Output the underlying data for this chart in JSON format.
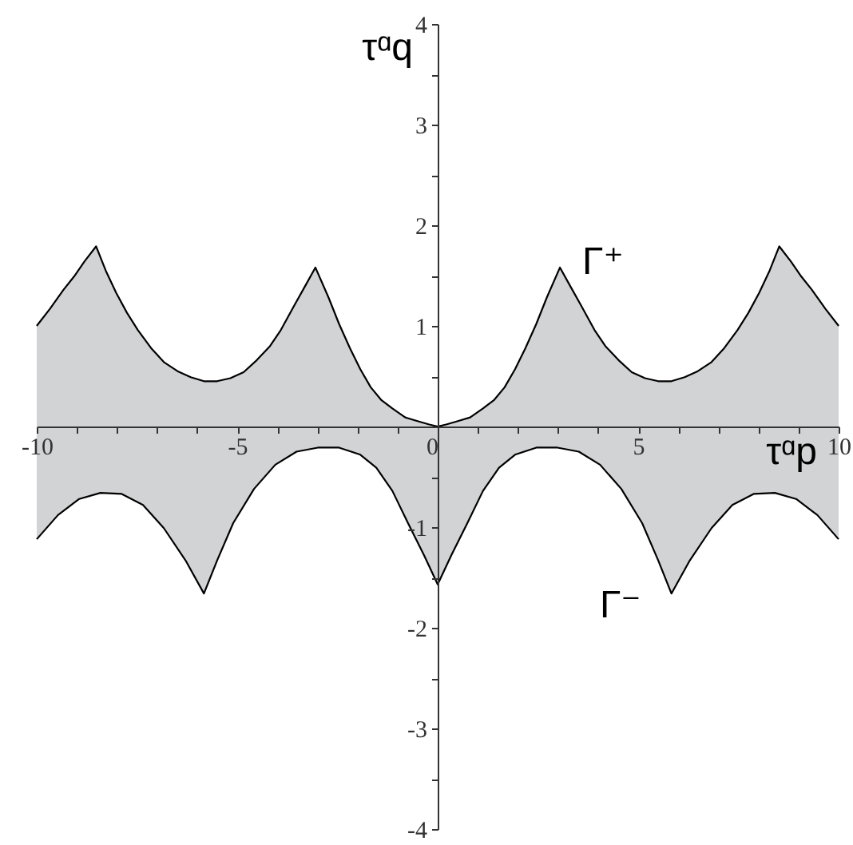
{
  "chart_data": {
    "type": "area",
    "xlabel": "τᵅp",
    "ylabel": "τᵅq",
    "xlim": [
      -10,
      10
    ],
    "ylim": [
      -4,
      4
    ],
    "xticks": [
      -10,
      {
        "value": -9,
        "label": null
      },
      {
        "value": -8,
        "label": null
      },
      {
        "value": -7,
        "label": null
      },
      {
        "value": -6,
        "label": null
      },
      -5,
      {
        "value": -4,
        "label": null
      },
      {
        "value": -3,
        "label": null
      },
      {
        "value": -2,
        "label": null
      },
      {
        "value": -1,
        "label": null
      },
      0,
      {
        "value": 1,
        "label": null
      },
      {
        "value": 2,
        "label": null
      },
      {
        "value": 3,
        "label": null
      },
      {
        "value": 4,
        "label": null
      },
      5,
      {
        "value": 6,
        "label": null
      },
      {
        "value": 7,
        "label": null
      },
      {
        "value": 8,
        "label": null
      },
      {
        "value": 9,
        "label": null
      },
      10
    ],
    "yticks": [
      -4,
      {
        "value": -3.5,
        "label": null
      },
      -3,
      {
        "value": -2.5,
        "label": null
      },
      -2,
      {
        "value": -1.5,
        "label": null
      },
      -1,
      {
        "value": -0.5,
        "label": null
      },
      {
        "value": 0.5,
        "label": null
      },
      1,
      {
        "value": 1.5,
        "label": null
      },
      2,
      {
        "value": 2.5,
        "label": null
      },
      3,
      {
        "value": 3.5,
        "label": null
      },
      4
    ],
    "series": [
      {
        "name": "Γ⁺",
        "color": "#d1d3d4",
        "x": [
          -10,
          -9.67,
          -9.33,
          -9.07,
          -8.81,
          -8.52,
          -8.28,
          -8.02,
          -7.75,
          -7.48,
          -7.15,
          -6.83,
          -6.49,
          -6.16,
          -5.83,
          -5.5,
          -5.17,
          -4.84,
          -4.51,
          -4.18,
          -3.91,
          -3.58,
          -3.3,
          -3.05,
          -2.72,
          -2.46,
          -2.19,
          -1.93,
          -1.67,
          -1.4,
          -1.13,
          -0.81,
          -0.47,
          -0.21,
          0,
          0.21,
          0.47,
          0.81,
          1.13,
          1.4,
          1.67,
          1.93,
          2.19,
          2.46,
          2.72,
          3.05,
          3.3,
          3.58,
          3.91,
          4.18,
          4.51,
          4.84,
          5.17,
          5.5,
          5.83,
          6.16,
          6.49,
          6.83,
          7.15,
          7.48,
          7.75,
          8.02,
          8.28,
          8.52,
          8.81,
          9.07,
          9.33,
          9.67,
          10
        ],
        "values": [
          1.0,
          1.17,
          1.36,
          1.49,
          1.64,
          1.79,
          1.55,
          1.33,
          1.13,
          0.96,
          0.78,
          0.64,
          0.55,
          0.49,
          0.45,
          0.45,
          0.48,
          0.54,
          0.66,
          0.8,
          0.96,
          1.2,
          1.4,
          1.58,
          1.28,
          1.02,
          0.78,
          0.57,
          0.39,
          0.26,
          0.18,
          0.09,
          0.05,
          0.02,
          0,
          0.02,
          0.05,
          0.09,
          0.18,
          0.26,
          0.39,
          0.57,
          0.78,
          1.02,
          1.28,
          1.58,
          1.4,
          1.2,
          0.96,
          0.8,
          0.66,
          0.54,
          0.48,
          0.45,
          0.45,
          0.49,
          0.55,
          0.64,
          0.78,
          0.96,
          1.13,
          1.33,
          1.55,
          1.79,
          1.64,
          1.49,
          1.36,
          1.17,
          1.0
        ]
      },
      {
        "name": "Γ⁻",
        "color": "#d1d3d4",
        "x": [
          -10,
          -9.47,
          -8.94,
          -8.41,
          -7.88,
          -7.35,
          -6.83,
          -6.29,
          -5.83,
          -5.5,
          -5.1,
          -4.58,
          -4.05,
          -3.52,
          -2.99,
          -2.46,
          -1.93,
          -1.53,
          -1.13,
          -0.74,
          -0.34,
          0,
          0.34,
          0.74,
          1.13,
          1.53,
          1.93,
          2.46,
          2.99,
          3.52,
          4.05,
          4.58,
          5.1,
          5.5,
          5.83,
          6.29,
          6.83,
          7.35,
          7.88,
          8.41,
          8.94,
          9.47,
          10
        ],
        "values": [
          -1.12,
          -0.88,
          -0.72,
          -0.66,
          -0.67,
          -0.78,
          -1.01,
          -1.33,
          -1.66,
          -1.33,
          -0.96,
          -0.62,
          -0.38,
          -0.25,
          -0.21,
          -0.21,
          -0.28,
          -0.41,
          -0.64,
          -0.96,
          -1.28,
          -1.57,
          -1.28,
          -0.96,
          -0.64,
          -0.41,
          -0.28,
          -0.21,
          -0.21,
          -0.25,
          -0.38,
          -0.62,
          -0.96,
          -1.33,
          -1.66,
          -1.33,
          -1.01,
          -0.78,
          -0.67,
          -0.66,
          -0.72,
          -0.88,
          -1.12
        ]
      }
    ]
  }
}
